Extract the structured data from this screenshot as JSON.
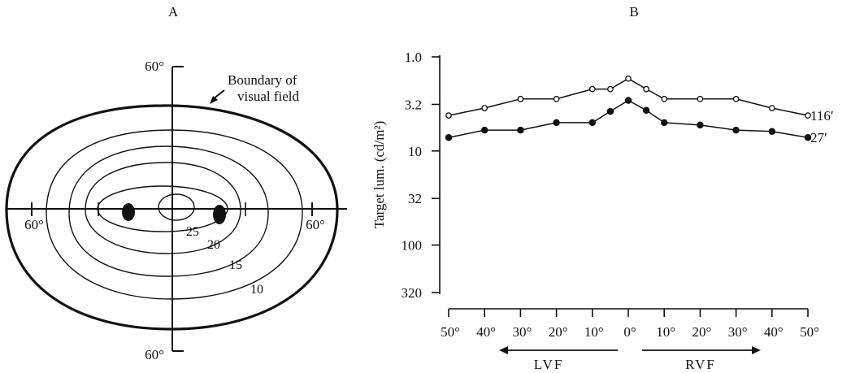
{
  "panel_a": {
    "label": "A",
    "axis_labels": {
      "top": "60°",
      "bottom": "60°",
      "left": "60°",
      "right": "60°"
    },
    "annotation": {
      "line1": "Boundary of",
      "line2": "visual field"
    },
    "isopters": [
      {
        "label": "",
        "ecc": 0.06
      },
      {
        "label": "25",
        "ecc": 0.28
      },
      {
        "label": "20",
        "ecc": 0.46
      },
      {
        "label": "15",
        "ecc": 0.62
      },
      {
        "label": "10",
        "ecc": 0.81
      }
    ]
  },
  "panel_b": {
    "label": "B",
    "field_labels": {
      "left": "LVF",
      "right": "RVF"
    }
  },
  "chart_data": {
    "type": "line",
    "title": "",
    "ylabel": "Target lum. (cd/m²)",
    "yscale": "log",
    "ylim": [
      1.0,
      320
    ],
    "yticks": [
      1.0,
      3.2,
      10,
      32,
      100,
      320
    ],
    "ytick_labels": [
      "1.0",
      "3.2",
      "10",
      "32",
      "100",
      "320"
    ],
    "y_inverted": true,
    "x": [
      -50,
      -40,
      -30,
      -20,
      -10,
      -5,
      0,
      5,
      10,
      20,
      30,
      40,
      50
    ],
    "xticks": [
      -50,
      -40,
      -30,
      -20,
      -10,
      0,
      10,
      20,
      30,
      40,
      50
    ],
    "xtick_labels": [
      "50°",
      "40°",
      "30°",
      "20°",
      "10°",
      "0°",
      "10°",
      "20°",
      "30°",
      "40°",
      "50°"
    ],
    "series": [
      {
        "name": "116′",
        "marker": "open-circle",
        "values": [
          4.2,
          3.5,
          2.8,
          2.8,
          2.2,
          2.2,
          1.7,
          2.2,
          2.8,
          2.8,
          2.8,
          3.5,
          4.2
        ]
      },
      {
        "name": "27′",
        "marker": "filled-circle",
        "values": [
          7.2,
          6.0,
          6.0,
          5.0,
          5.0,
          3.8,
          2.9,
          3.7,
          5.0,
          5.3,
          6.0,
          6.2,
          7.2
        ]
      }
    ]
  }
}
